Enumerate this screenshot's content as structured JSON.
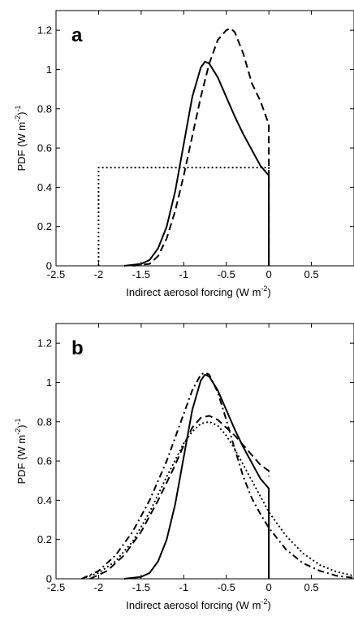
{
  "chart_data": [
    {
      "type": "line",
      "panel_label": "a",
      "xlabel": "Indirect aerosol forcing (W m",
      "xlabel_sup": "-2",
      "xlabel_tail": ")",
      "ylabel": "PDF (W m",
      "ylabel_sup1": "-2",
      "ylabel_mid": ")",
      "ylabel_sup2": "-1",
      "xlim": [
        -2.5,
        1.0
      ],
      "ylim": [
        0,
        1.3
      ],
      "xticks": [
        -2.5,
        -2,
        -1.5,
        -1,
        -0.5,
        0,
        0.5
      ],
      "xtick_labels": [
        "-2.5",
        "-2",
        "-1.5",
        "-1",
        "-0.5",
        "0",
        "0.5"
      ],
      "yticks": [
        0,
        0.2,
        0.4,
        0.6,
        0.8,
        1,
        1.2
      ],
      "ytick_labels": [
        "0",
        "0.2",
        "0.4",
        "0.6",
        "0.8",
        "1",
        "1.2"
      ],
      "grid": false,
      "series": [
        {
          "style": "solid",
          "x": [
            -1.7,
            -1.5,
            -1.4,
            -1.3,
            -1.2,
            -1.1,
            -1.0,
            -0.9,
            -0.8,
            -0.75,
            -0.7,
            -0.6,
            -0.5,
            -0.4,
            -0.3,
            -0.2,
            -0.1,
            0.0,
            0.0,
            0.0
          ],
          "y": [
            0.0,
            0.01,
            0.03,
            0.09,
            0.2,
            0.38,
            0.62,
            0.86,
            1.01,
            1.04,
            1.03,
            0.96,
            0.86,
            0.76,
            0.67,
            0.59,
            0.51,
            0.46,
            0.46,
            0.0
          ]
        },
        {
          "style": "dashed",
          "x": [
            -1.6,
            -1.4,
            -1.3,
            -1.2,
            -1.1,
            -1.0,
            -0.9,
            -0.8,
            -0.7,
            -0.6,
            -0.5,
            -0.45,
            -0.4,
            -0.3,
            -0.2,
            -0.1,
            0.0,
            0.0,
            0.0
          ],
          "y": [
            0.0,
            0.01,
            0.05,
            0.14,
            0.28,
            0.46,
            0.66,
            0.86,
            1.03,
            1.15,
            1.2,
            1.21,
            1.19,
            1.08,
            0.93,
            0.84,
            0.72,
            0.5,
            0.0
          ]
        },
        {
          "style": "dotted",
          "x": [
            -2,
            -2,
            0,
            0
          ],
          "y": [
            0,
            0.5,
            0.5,
            0
          ]
        }
      ]
    },
    {
      "type": "line",
      "panel_label": "b",
      "xlabel": "Indirect aerosol forcing (W m",
      "xlabel_sup": "-2",
      "xlabel_tail": ")",
      "ylabel": "PDF (W m",
      "ylabel_sup1": "-2",
      "ylabel_mid": ")",
      "ylabel_sup2": "-1",
      "xlim": [
        -2.5,
        1.0
      ],
      "ylim": [
        0,
        1.3
      ],
      "xticks": [
        -2.5,
        -2,
        -1.5,
        -1,
        -0.5,
        0,
        0.5
      ],
      "xtick_labels": [
        "-2.5",
        "-2",
        "-1.5",
        "-1",
        "-0.5",
        "0",
        "0.5"
      ],
      "yticks": [
        0,
        0.2,
        0.4,
        0.6,
        0.8,
        1,
        1.2
      ],
      "ytick_labels": [
        "0",
        "0.2",
        "0.4",
        "0.6",
        "0.8",
        "1",
        "1.2"
      ],
      "grid": false,
      "series": [
        {
          "style": "solid",
          "x": [
            -1.7,
            -1.5,
            -1.4,
            -1.3,
            -1.2,
            -1.1,
            -1.0,
            -0.9,
            -0.8,
            -0.75,
            -0.7,
            -0.6,
            -0.5,
            -0.4,
            -0.3,
            -0.2,
            -0.1,
            0.0,
            0.0,
            0.0
          ],
          "y": [
            0.0,
            0.01,
            0.03,
            0.09,
            0.2,
            0.38,
            0.62,
            0.86,
            1.01,
            1.04,
            1.03,
            0.96,
            0.86,
            0.76,
            0.67,
            0.59,
            0.51,
            0.46,
            0.46,
            0.0
          ]
        },
        {
          "style": "dashed",
          "x": [
            -2.1,
            -1.9,
            -1.7,
            -1.5,
            -1.3,
            -1.1,
            -1.0,
            -0.9,
            -0.8,
            -0.7,
            -0.6,
            -0.5,
            -0.4,
            -0.3,
            -0.2,
            -0.1,
            0.0,
            0.0
          ],
          "y": [
            0.0,
            0.04,
            0.12,
            0.24,
            0.4,
            0.58,
            0.68,
            0.77,
            0.82,
            0.83,
            0.81,
            0.77,
            0.73,
            0.68,
            0.63,
            0.58,
            0.55,
            0.52
          ]
        },
        {
          "style": "dashdot",
          "x": [
            -2.2,
            -2.0,
            -1.8,
            -1.6,
            -1.4,
            -1.2,
            -1.1,
            -1.0,
            -0.9,
            -0.8,
            -0.75,
            -0.7,
            -0.6,
            -0.5,
            -0.4,
            -0.3,
            -0.2,
            -0.1,
            0.0,
            0.2,
            0.4,
            0.6,
            0.8,
            1.0
          ],
          "y": [
            0.0,
            0.04,
            0.12,
            0.24,
            0.4,
            0.6,
            0.72,
            0.84,
            0.96,
            1.04,
            1.05,
            1.04,
            0.95,
            0.81,
            0.66,
            0.52,
            0.41,
            0.33,
            0.26,
            0.15,
            0.08,
            0.04,
            0.015,
            0.005
          ]
        },
        {
          "style": "dotted",
          "x": [
            -2.2,
            -2.0,
            -1.8,
            -1.6,
            -1.4,
            -1.2,
            -1.0,
            -0.9,
            -0.8,
            -0.7,
            -0.6,
            -0.5,
            -0.4,
            -0.3,
            -0.2,
            -0.1,
            0.0,
            0.2,
            0.4,
            0.6,
            0.8,
            1.0
          ],
          "y": [
            0.0,
            0.03,
            0.09,
            0.19,
            0.34,
            0.52,
            0.69,
            0.75,
            0.79,
            0.8,
            0.78,
            0.73,
            0.66,
            0.58,
            0.5,
            0.42,
            0.34,
            0.22,
            0.13,
            0.07,
            0.035,
            0.015
          ]
        }
      ]
    }
  ]
}
